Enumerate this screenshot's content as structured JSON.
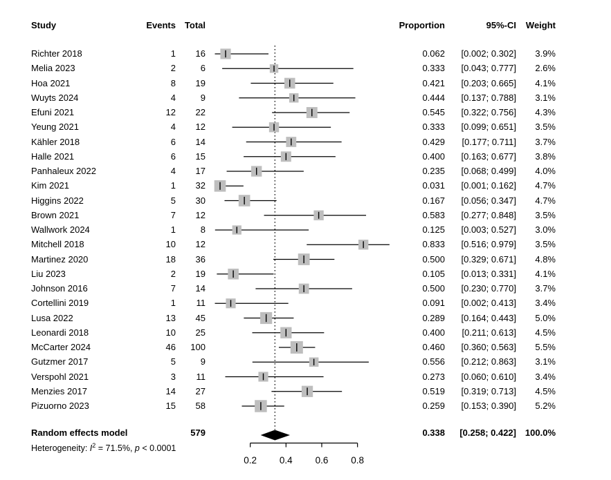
{
  "header": {
    "study": "Study",
    "events": "Events",
    "total": "Total",
    "proportion": "Proportion",
    "ci": "95%-CI",
    "weight": "Weight"
  },
  "summary": {
    "label": "Random effects model",
    "total": "579",
    "proportion": "0.338",
    "ci": "[0.258; 0.422]",
    "weight": "100.0%"
  },
  "heterogeneity": {
    "prefix": "Heterogeneity: ",
    "i_symbol": "I",
    "i_sup": "2",
    "mid": " = 71.5%, ",
    "p_symbol": "p",
    "tail": " < 0.0001"
  },
  "colors": {
    "square": "#bebebe",
    "line": "#000000",
    "diamond": "#000000",
    "text": "#000000",
    "background": "#ffffff"
  },
  "chart_data": {
    "type": "forest",
    "effect_measure": "Proportion",
    "x_axis": {
      "ticks": [
        0.2,
        0.4,
        0.6,
        0.8
      ],
      "tick_labels": [
        "0.2",
        "0.4",
        "0.6",
        "0.8"
      ],
      "range_drawn": [
        0.2,
        0.8
      ]
    },
    "reference_line": 0.338,
    "studies": [
      {
        "name": "Richter 2018",
        "events": "1",
        "total": "16",
        "proportion": 0.062,
        "lo": 0.002,
        "hi": 0.302,
        "ci_text": "[0.002; 0.302]",
        "weight": 3.9,
        "weight_text": "3.9%"
      },
      {
        "name": "Melia 2023",
        "events": "2",
        "total": "6",
        "proportion": 0.333,
        "lo": 0.043,
        "hi": 0.777,
        "ci_text": "[0.043; 0.777]",
        "weight": 2.6,
        "weight_text": "2.6%"
      },
      {
        "name": "Hoa 2021",
        "events": "8",
        "total": "19",
        "proportion": 0.421,
        "lo": 0.203,
        "hi": 0.665,
        "ci_text": "[0.203; 0.665]",
        "weight": 4.1,
        "weight_text": "4.1%"
      },
      {
        "name": "Wuyts 2024",
        "events": "4",
        "total": "9",
        "proportion": 0.444,
        "lo": 0.137,
        "hi": 0.788,
        "ci_text": "[0.137; 0.788]",
        "weight": 3.1,
        "weight_text": "3.1%"
      },
      {
        "name": "Efuni 2021",
        "events": "12",
        "total": "22",
        "proportion": 0.545,
        "lo": 0.322,
        "hi": 0.756,
        "ci_text": "[0.322; 0.756]",
        "weight": 4.3,
        "weight_text": "4.3%"
      },
      {
        "name": "Yeung 2021",
        "events": "4",
        "total": "12",
        "proportion": 0.333,
        "lo": 0.099,
        "hi": 0.651,
        "ci_text": "[0.099; 0.651]",
        "weight": 3.5,
        "weight_text": "3.5%"
      },
      {
        "name": "Kähler 2018",
        "events": "6",
        "total": "14",
        "proportion": 0.429,
        "lo": 0.177,
        "hi": 0.711,
        "ci_text": "[0.177; 0.711]",
        "weight": 3.7,
        "weight_text": "3.7%"
      },
      {
        "name": "Halle 2021",
        "events": "6",
        "total": "15",
        "proportion": 0.4,
        "lo": 0.163,
        "hi": 0.677,
        "ci_text": "[0.163; 0.677]",
        "weight": 3.8,
        "weight_text": "3.8%"
      },
      {
        "name": "Panhaleux 2022",
        "events": "4",
        "total": "17",
        "proportion": 0.235,
        "lo": 0.068,
        "hi": 0.499,
        "ci_text": "[0.068; 0.499]",
        "weight": 4.0,
        "weight_text": "4.0%"
      },
      {
        "name": "Kim 2021",
        "events": "1",
        "total": "32",
        "proportion": 0.031,
        "lo": 0.001,
        "hi": 0.162,
        "ci_text": "[0.001; 0.162]",
        "weight": 4.7,
        "weight_text": "4.7%"
      },
      {
        "name": "Higgins 2022",
        "events": "5",
        "total": "30",
        "proportion": 0.167,
        "lo": 0.056,
        "hi": 0.347,
        "ci_text": "[0.056; 0.347]",
        "weight": 4.7,
        "weight_text": "4.7%"
      },
      {
        "name": "Brown 2021",
        "events": "7",
        "total": "12",
        "proportion": 0.583,
        "lo": 0.277,
        "hi": 0.848,
        "ci_text": "[0.277; 0.848]",
        "weight": 3.5,
        "weight_text": "3.5%"
      },
      {
        "name": "Wallwork 2024",
        "events": "1",
        "total": "8",
        "proportion": 0.125,
        "lo": 0.003,
        "hi": 0.527,
        "ci_text": "[0.003; 0.527]",
        "weight": 3.0,
        "weight_text": "3.0%"
      },
      {
        "name": "Mitchell 2018",
        "events": "10",
        "total": "12",
        "proportion": 0.833,
        "lo": 0.516,
        "hi": 0.979,
        "ci_text": "[0.516; 0.979]",
        "weight": 3.5,
        "weight_text": "3.5%"
      },
      {
        "name": "Martinez 2020",
        "events": "18",
        "total": "36",
        "proportion": 0.5,
        "lo": 0.329,
        "hi": 0.671,
        "ci_text": "[0.329; 0.671]",
        "weight": 4.8,
        "weight_text": "4.8%"
      },
      {
        "name": "Liu 2023",
        "events": "2",
        "total": "19",
        "proportion": 0.105,
        "lo": 0.013,
        "hi": 0.331,
        "ci_text": "[0.013; 0.331]",
        "weight": 4.1,
        "weight_text": "4.1%"
      },
      {
        "name": "Johnson 2016",
        "events": "7",
        "total": "14",
        "proportion": 0.5,
        "lo": 0.23,
        "hi": 0.77,
        "ci_text": "[0.230; 0.770]",
        "weight": 3.7,
        "weight_text": "3.7%"
      },
      {
        "name": "Cortellini 2019",
        "events": "1",
        "total": "11",
        "proportion": 0.091,
        "lo": 0.002,
        "hi": 0.413,
        "ci_text": "[0.002; 0.413]",
        "weight": 3.4,
        "weight_text": "3.4%"
      },
      {
        "name": "Lusa 2022",
        "events": "13",
        "total": "45",
        "proportion": 0.289,
        "lo": 0.164,
        "hi": 0.443,
        "ci_text": "[0.164; 0.443]",
        "weight": 5.0,
        "weight_text": "5.0%"
      },
      {
        "name": "Leonardi 2018",
        "events": "10",
        "total": "25",
        "proportion": 0.4,
        "lo": 0.211,
        "hi": 0.613,
        "ci_text": "[0.211; 0.613]",
        "weight": 4.5,
        "weight_text": "4.5%"
      },
      {
        "name": "McCarter 2024",
        "events": "46",
        "total": "100",
        "proportion": 0.46,
        "lo": 0.36,
        "hi": 0.563,
        "ci_text": "[0.360; 0.563]",
        "weight": 5.5,
        "weight_text": "5.5%"
      },
      {
        "name": "Gutzmer 2017",
        "events": "5",
        "total": "9",
        "proportion": 0.556,
        "lo": 0.212,
        "hi": 0.863,
        "ci_text": "[0.212; 0.863]",
        "weight": 3.1,
        "weight_text": "3.1%"
      },
      {
        "name": "Verspohl 2021",
        "events": "3",
        "total": "11",
        "proportion": 0.273,
        "lo": 0.06,
        "hi": 0.61,
        "ci_text": "[0.060; 0.610]",
        "weight": 3.4,
        "weight_text": "3.4%"
      },
      {
        "name": "Menzies 2017",
        "events": "14",
        "total": "27",
        "proportion": 0.519,
        "lo": 0.319,
        "hi": 0.713,
        "ci_text": "[0.319; 0.713]",
        "weight": 4.5,
        "weight_text": "4.5%"
      },
      {
        "name": "Pizuorno 2023",
        "events": "15",
        "total": "58",
        "proportion": 0.259,
        "lo": 0.153,
        "hi": 0.39,
        "ci_text": "[0.153; 0.390]",
        "weight": 5.2,
        "weight_text": "5.2%"
      }
    ],
    "pooled": {
      "label": "Random effects model",
      "total": 579,
      "proportion": 0.338,
      "lo": 0.258,
      "hi": 0.422,
      "weight": 100.0
    },
    "heterogeneity": {
      "I2": "71.5%",
      "p": "< 0.0001"
    }
  }
}
